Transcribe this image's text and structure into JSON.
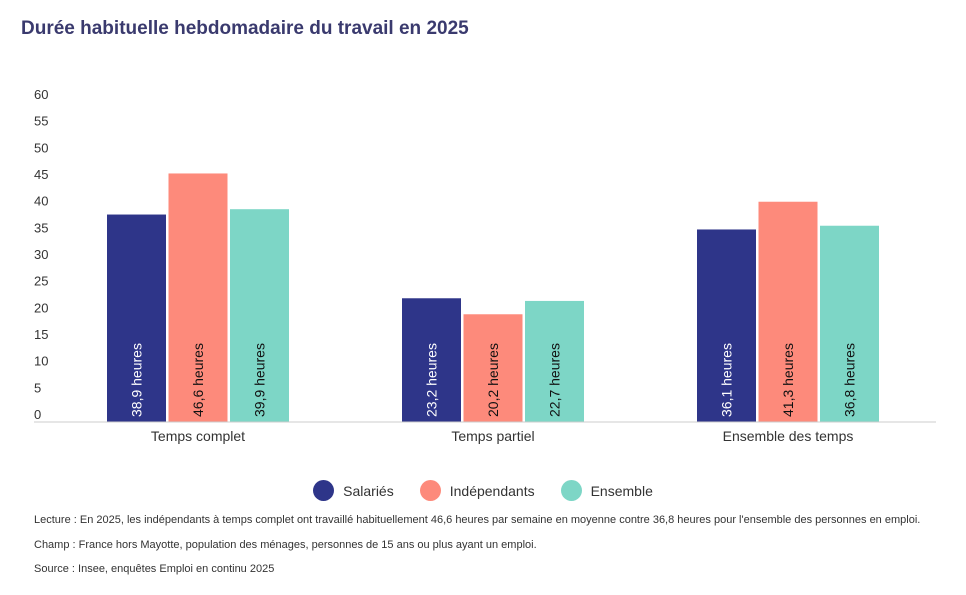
{
  "title": "Durée habituelle hebdomadaire du travail en 2025",
  "chart_data": {
    "type": "bar",
    "categories": [
      "Temps complet",
      "Temps partiel",
      "Ensemble des temps"
    ],
    "yticks": [
      0,
      5,
      10,
      15,
      20,
      25,
      30,
      35,
      40,
      45,
      50,
      55,
      60
    ],
    "ylim": [
      0,
      60
    ],
    "grid": false,
    "legend_position": "bottom",
    "series": [
      {
        "name": "Salariés",
        "color": "#2e3589",
        "values": [
          38.9,
          23.2,
          36.1
        ],
        "labels": [
          "38,9 heures",
          "23,2 heures",
          "36,1 heures"
        ]
      },
      {
        "name": "Indépendants",
        "color": "#fd8a7b",
        "values": [
          46.6,
          20.2,
          41.3
        ],
        "labels": [
          "46,6 heures",
          "20,2 heures",
          "41,3 heures"
        ]
      },
      {
        "name": "Ensemble",
        "color": "#7dd6c6",
        "values": [
          39.9,
          22.7,
          36.8
        ],
        "labels": [
          "39,9 heures",
          "22,7 heures",
          "36,8 heures"
        ]
      }
    ]
  },
  "notes": {
    "lecture": "Lecture : En 2025, les indépendants à temps complet ont travaillé habituellement 46,6 heures par semaine en moyenne contre 36,8 heures pour l'ensemble des personnes en emploi.",
    "champ": "Champ : France hors Mayotte, population des ménages, personnes de 15 ans ou plus ayant un emploi.",
    "source": "Source : Insee, enquêtes Emploi en continu 2025"
  }
}
